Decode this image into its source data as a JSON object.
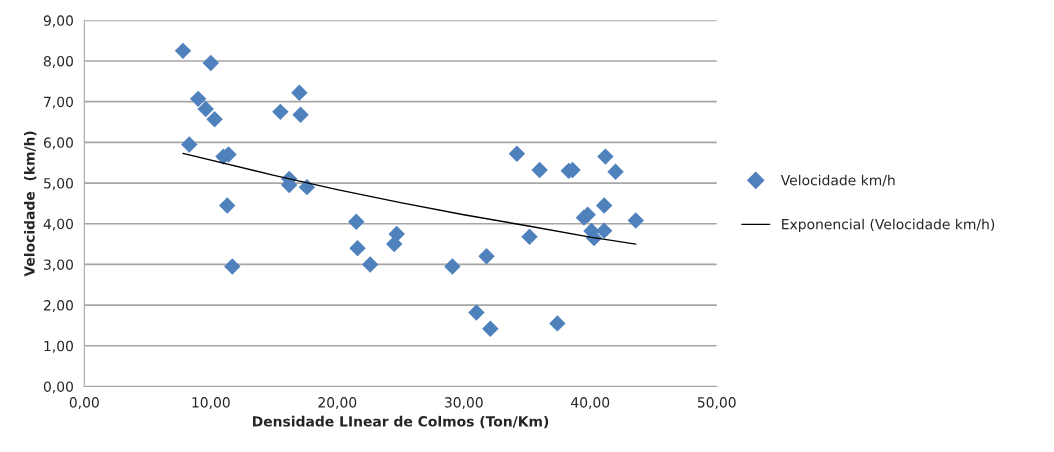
{
  "chart_data": {
    "type": "scatter",
    "xlabel": "Densidade LInear de Colmos (Ton/Km)",
    "ylabel": "Velocidade  (km/h)",
    "series": [
      {
        "name": "Velocidade km/h",
        "color": "#4f81bd",
        "marker": "diamond",
        "x": [
          7.8,
          10.0,
          9.0,
          9.6,
          10.3,
          8.3,
          11.0,
          11.4,
          11.3,
          11.7,
          15.5,
          17.0,
          17.1,
          16.2,
          16.2,
          17.6,
          21.5,
          21.6,
          22.6,
          24.5,
          24.7,
          29.1,
          31.0,
          31.8,
          32.1,
          34.2,
          35.2,
          36.0,
          38.3,
          38.6,
          37.4,
          39.5,
          39.8,
          40.1,
          40.3,
          41.1,
          41.1,
          41.2,
          42.0,
          43.6
        ],
        "values": [
          8.25,
          7.95,
          7.07,
          6.82,
          6.57,
          5.95,
          5.65,
          5.7,
          4.45,
          2.95,
          6.75,
          7.22,
          6.68,
          5.1,
          4.95,
          4.9,
          4.05,
          3.4,
          3.0,
          3.5,
          3.75,
          2.95,
          1.82,
          3.2,
          1.42,
          5.72,
          3.68,
          5.32,
          5.3,
          5.32,
          1.55,
          4.15,
          4.22,
          3.82,
          3.65,
          3.83,
          4.45,
          5.65,
          5.28,
          4.08
        ]
      },
      {
        "name": "Exponencial (Velocidade km/h)",
        "type": "line",
        "color": "#000000",
        "marker": "none",
        "line_style": "solid",
        "x": [
          7.8,
          15,
          20,
          25,
          30,
          35,
          40,
          43.6
        ],
        "values": [
          5.73,
          5.19,
          4.84,
          4.52,
          4.22,
          3.95,
          3.67,
          3.5
        ]
      }
    ],
    "xlim": [
      0,
      50
    ],
    "ylim": [
      0,
      9
    ],
    "xticks": [
      {
        "value": 0,
        "label": "0,00"
      },
      {
        "value": 10,
        "label": "10,00"
      },
      {
        "value": 20,
        "label": "20,00"
      },
      {
        "value": 30,
        "label": "30,00"
      },
      {
        "value": 40,
        "label": "40,00"
      },
      {
        "value": 50,
        "label": "50,00"
      }
    ],
    "yticks": [
      {
        "value": 0,
        "label": "0,00"
      },
      {
        "value": 1,
        "label": "1,00"
      },
      {
        "value": 2,
        "label": "2,00"
      },
      {
        "value": 3,
        "label": "3,00"
      },
      {
        "value": 4,
        "label": "4,00"
      },
      {
        "value": 5,
        "label": "5,00"
      },
      {
        "value": 6,
        "label": "6,00"
      },
      {
        "value": 7,
        "label": "7,00"
      },
      {
        "value": 8,
        "label": "8,00"
      },
      {
        "value": 9,
        "label": "9,00"
      }
    ],
    "grid": "y",
    "legend": "right"
  }
}
